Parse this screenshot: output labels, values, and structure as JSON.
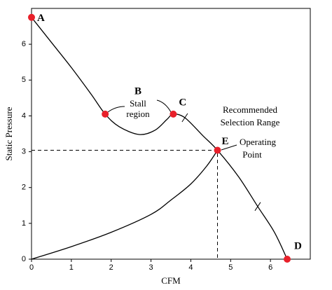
{
  "chart_data": {
    "type": "line",
    "x_label": "CFM",
    "y_label": "Static Pressure",
    "xlim": [
      0,
      7
    ],
    "ylim": [
      0,
      7
    ],
    "xticks": [
      0,
      1,
      2,
      3,
      4,
      5,
      6
    ],
    "yticks": [
      0,
      1,
      2,
      3,
      4,
      5,
      6
    ],
    "series": [
      {
        "color": "#000000",
        "x": [
          0,
          0.5,
          1,
          1.5,
          1.85,
          2.2,
          2.7,
          3.1,
          3.4,
          3.56,
          3.85,
          4.3,
          4.67,
          5.2,
          5.68,
          6.1,
          6.42
        ],
        "values": [
          6.75,
          6.05,
          5.35,
          4.6,
          4.05,
          3.7,
          3.48,
          3.6,
          3.9,
          4.05,
          3.95,
          3.45,
          3.04,
          2.3,
          1.47,
          0.75,
          0
        ]
      },
      {
        "color": "#000000",
        "x": [
          0,
          1,
          2,
          3,
          3.5,
          4,
          4.4,
          4.67
        ],
        "values": [
          0,
          0.35,
          0.75,
          1.25,
          1.65,
          2.1,
          2.6,
          3.04
        ]
      }
    ],
    "points": [
      {
        "label": "A",
        "x": 0,
        "y": 6.75
      },
      {
        "label": "B",
        "x": 1.85,
        "y": 4.05
      },
      {
        "label": "C",
        "x": 3.56,
        "y": 4.05
      },
      {
        "label": "E",
        "x": 4.67,
        "y": 3.04
      },
      {
        "label": "D",
        "x": 6.42,
        "y": 0
      }
    ],
    "marker_color": "#e8202a",
    "selection_range": [
      {
        "x": 3.85,
        "y": 3.95
      },
      {
        "x": 5.68,
        "y": 1.47
      }
    ],
    "annotations": {
      "stall": [
        "Stall",
        "region"
      ],
      "range": [
        "Recommended",
        "Selection Range"
      ],
      "operating": [
        "Operating",
        "Point"
      ]
    }
  }
}
